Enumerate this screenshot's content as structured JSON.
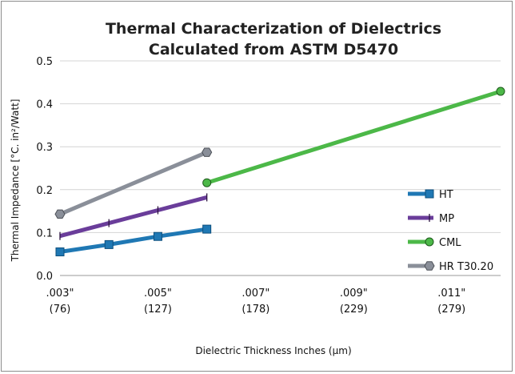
{
  "chart_data": {
    "type": "line",
    "title_lines": [
      "Thermal Characterization of Dielectrics",
      "Calculated from ASTM D5470"
    ],
    "xlabel": "Dielectric Thickness Inches (µm)",
    "ylabel": "Thermal Impedance [°C. in²/Watt]",
    "xlim": [
      0.003,
      0.012
    ],
    "ylim": [
      0,
      0.5
    ],
    "y_ticks": [
      "0.0",
      "0.1",
      "0.2",
      "0.3",
      "0.4",
      "0.5"
    ],
    "y_tick_values": [
      0,
      0.1,
      0.2,
      0.3,
      0.4,
      0.5
    ],
    "x_ticks": [
      {
        "value": 0.003,
        "inch": ".003\"",
        "um": "(76)"
      },
      {
        "value": 0.005,
        "inch": ".005\"",
        "um": "(127)"
      },
      {
        "value": 0.007,
        "inch": ".007\"",
        "um": "(178)"
      },
      {
        "value": 0.009,
        "inch": ".009\"",
        "um": "(229)"
      },
      {
        "value": 0.011,
        "inch": ".011\"",
        "um": "(279)"
      }
    ],
    "legend_position": "right",
    "series": [
      {
        "name": "HT",
        "color": "#1f78b4",
        "marker": "square",
        "x": [
          0.003,
          0.004,
          0.005,
          0.006
        ],
        "y": [
          0.055,
          0.072,
          0.091,
          0.108
        ]
      },
      {
        "name": "MP",
        "color": "#6a3d9a",
        "marker": "bar",
        "x": [
          0.003,
          0.004,
          0.005,
          0.006
        ],
        "y": [
          0.092,
          0.122,
          0.152,
          0.182
        ]
      },
      {
        "name": "CML",
        "color": "#4cb848",
        "marker": "circle",
        "x": [
          0.006,
          0.012
        ],
        "y": [
          0.216,
          0.429
        ]
      },
      {
        "name": "HR T30.20",
        "color": "#8a8f99",
        "marker": "hexagon",
        "x": [
          0.003,
          0.006
        ],
        "y": [
          0.143,
          0.287
        ]
      }
    ]
  }
}
